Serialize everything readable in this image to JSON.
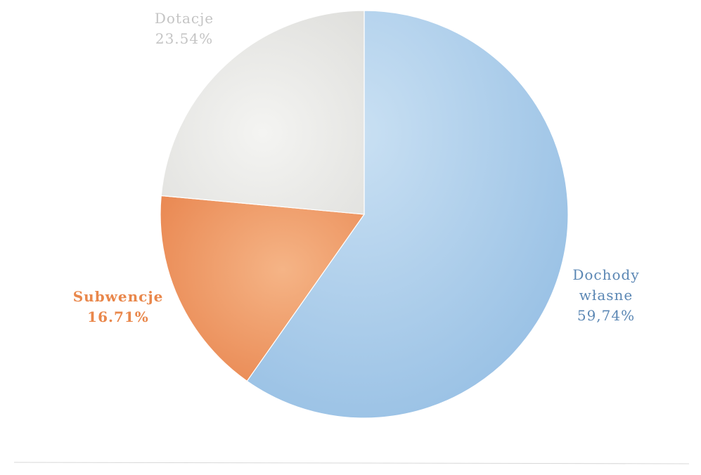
{
  "chart_data": {
    "type": "pie",
    "slices": [
      {
        "name": "Dochody własne",
        "label_lines": [
          "Dochody",
          "własne",
          "59,74%"
        ],
        "value": 59.74,
        "color": "#a9cde8"
      },
      {
        "name": "Subwencje",
        "label_lines": [
          "Subwencje",
          "16.71%"
        ],
        "value": 16.71,
        "color": "#ee9f6c"
      },
      {
        "name": "Dotacje",
        "label_lines": [
          "Dotacje",
          "23.54%"
        ],
        "value": 23.54,
        "color": "#ececea"
      }
    ],
    "label_colors": [
      "#5b87b4",
      "#e9874b",
      "#c4c4c4"
    ],
    "title": "",
    "legend": "none"
  }
}
